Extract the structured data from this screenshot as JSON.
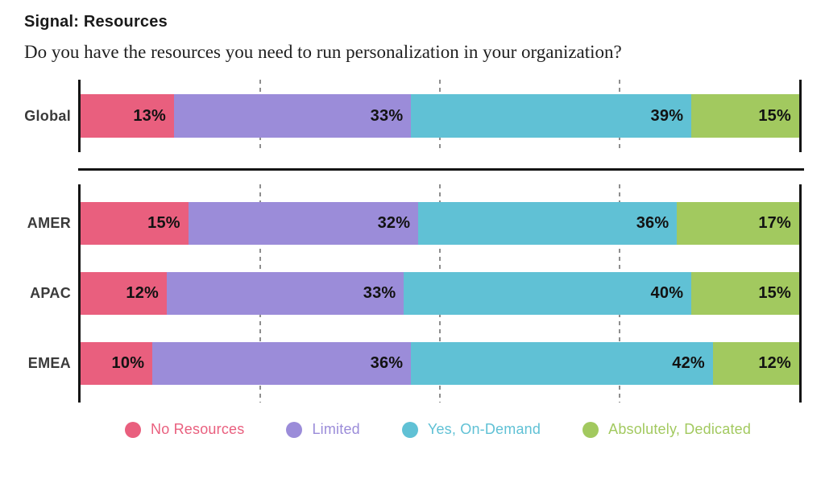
{
  "header": {
    "title": "Signal: Resources",
    "subtitle": "Do you have the resources you need to run personalization in your organization?"
  },
  "chart_data": {
    "type": "bar",
    "variant": "horizontal-stacked-100pct",
    "unit": "%",
    "xlim": [
      0,
      100
    ],
    "gridlines_pct": [
      25,
      50,
      75
    ],
    "grid_style": "dashed-vertical",
    "legend_position": "bottom",
    "categories": [
      "Global",
      "AMER",
      "APAC",
      "EMEA"
    ],
    "sections": [
      [
        "Global"
      ],
      [
        "AMER",
        "APAC",
        "EMEA"
      ]
    ],
    "series": [
      {
        "name": "No Resources",
        "color": "#E95F7E",
        "values": [
          13,
          15,
          12,
          10
        ]
      },
      {
        "name": "Limited",
        "color": "#9B8CD9",
        "values": [
          33,
          32,
          33,
          36
        ]
      },
      {
        "name": "Yes, On-Demand",
        "color": "#60C1D5",
        "values": [
          39,
          36,
          40,
          42
        ]
      },
      {
        "name": "Absolutely, Dedicated",
        "color": "#A2C95F",
        "values": [
          15,
          17,
          15,
          12
        ]
      }
    ]
  }
}
